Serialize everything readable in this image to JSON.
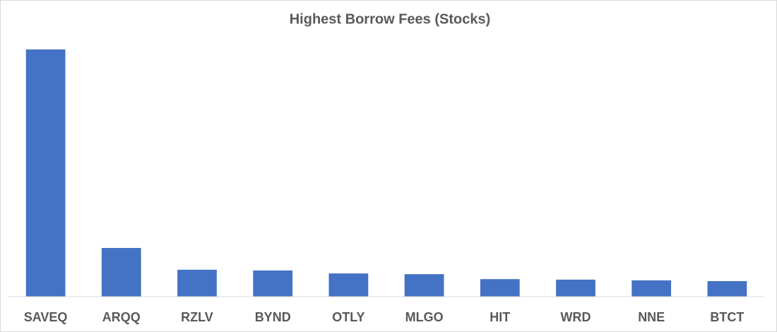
{
  "chart_data": {
    "type": "bar",
    "title": "Highest Borrow Fees (Stocks)",
    "categories": [
      "SAVEQ",
      "ARQQ",
      "RZLV",
      "BYND",
      "OTLY",
      "MLGO",
      "HIT",
      "WRD",
      "NNE",
      "BTCT"
    ],
    "values": [
      100,
      19.7,
      10.9,
      10.6,
      9.4,
      9.1,
      7.1,
      6.9,
      6.6,
      6.3
    ],
    "color": "#4472c4",
    "ylim": [
      0,
      100
    ]
  }
}
